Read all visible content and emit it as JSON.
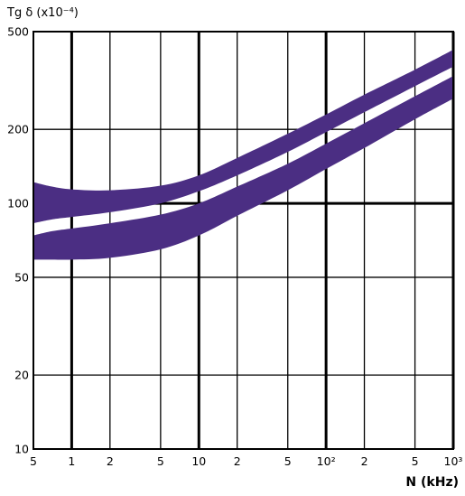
{
  "chart_data": {
    "type": "area",
    "ylabel": "Tg δ (x10⁻⁴)",
    "xlabel": "N (kHz)",
    "x_scale": "log",
    "y_scale": "log",
    "xlim": [
      0.5,
      1000
    ],
    "ylim": [
      10,
      500
    ],
    "grid": true,
    "x_ticks": [
      {
        "value": 0.5,
        "label": "5"
      },
      {
        "value": 1,
        "label": "1"
      },
      {
        "value": 2,
        "label": "2"
      },
      {
        "value": 5,
        "label": "5"
      },
      {
        "value": 10,
        "label": "10"
      },
      {
        "value": 20,
        "label": "2"
      },
      {
        "value": 50,
        "label": "5"
      },
      {
        "value": 100,
        "label": "10²"
      },
      {
        "value": 200,
        "label": "2"
      },
      {
        "value": 500,
        "label": "5"
      },
      {
        "value": 1000,
        "label": "10³"
      }
    ],
    "y_ticks": [
      {
        "value": 10,
        "label": "10"
      },
      {
        "value": 20,
        "label": "20"
      },
      {
        "value": 50,
        "label": "50"
      },
      {
        "value": 100,
        "label": "100"
      },
      {
        "value": 200,
        "label": "200"
      },
      {
        "value": 500,
        "label": "500"
      }
    ],
    "major_x": [
      1,
      10,
      100,
      1000
    ],
    "major_y": [
      100
    ],
    "band_color": "#4b2e83",
    "series": [
      {
        "upper": [
          [
            0.5,
            122
          ],
          [
            0.7,
            117
          ],
          [
            1,
            114
          ],
          [
            2,
            113
          ],
          [
            5,
            118
          ],
          [
            10,
            130
          ],
          [
            20,
            153
          ],
          [
            50,
            192
          ],
          [
            100,
            230
          ],
          [
            200,
            277
          ],
          [
            500,
            350
          ],
          [
            1000,
            422
          ]
        ],
        "lower": [
          [
            0.5,
            83
          ],
          [
            0.7,
            86
          ],
          [
            1,
            88
          ],
          [
            2,
            92
          ],
          [
            5,
            100
          ],
          [
            10,
            112
          ],
          [
            20,
            130
          ],
          [
            50,
            162
          ],
          [
            100,
            195
          ],
          [
            200,
            235
          ],
          [
            500,
            300
          ],
          [
            1000,
            360
          ]
        ]
      },
      {
        "upper": [
          [
            0.5,
            74
          ],
          [
            0.7,
            77
          ],
          [
            1,
            79
          ],
          [
            2,
            83
          ],
          [
            5,
            90
          ],
          [
            10,
            100
          ],
          [
            20,
            117
          ],
          [
            50,
            145
          ],
          [
            100,
            175
          ],
          [
            200,
            212
          ],
          [
            500,
            273
          ],
          [
            1000,
            330
          ]
        ],
        "lower": [
          [
            0.5,
            59
          ],
          [
            0.7,
            59
          ],
          [
            1,
            59
          ],
          [
            2,
            60
          ],
          [
            5,
            65
          ],
          [
            10,
            74
          ],
          [
            20,
            89
          ],
          [
            50,
            113
          ],
          [
            100,
            138
          ],
          [
            200,
            168
          ],
          [
            500,
            220
          ],
          [
            1000,
            267
          ]
        ]
      }
    ]
  }
}
